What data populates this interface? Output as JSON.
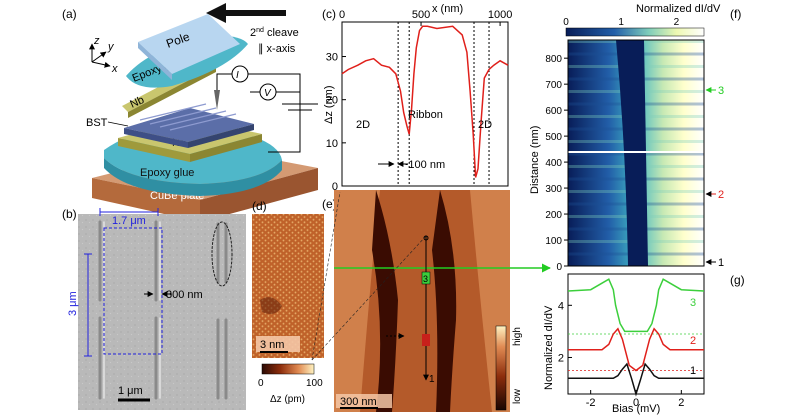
{
  "panel_a": {
    "label": "(a)",
    "axis_z": "z",
    "axis_y": "y",
    "axis_x": "x",
    "pole": "Pole",
    "epoxy_top": "Epoxy glue",
    "nb_top": "Nb",
    "cleave_pre": "2",
    "cleave_sup": "nd",
    "cleave_post": " cleave",
    "cleave_axis": "∥ x-axis",
    "bst": "BST",
    "nb_bottom": "Nb",
    "epoxy_bottom": "Epoxy glue",
    "plate": "CuBe plate",
    "current": "I",
    "voltage": "V"
  },
  "panel_b": {
    "label": "(b)",
    "width": "1.7 μm",
    "gap": "300 nm",
    "height": "3 μm",
    "scale": "1 μm"
  },
  "panel_c": {
    "label": "(c)",
    "x_title": "x (nm)",
    "y_title": "Δz (nm)",
    "left_region": "2D",
    "middle_region": "Ribbon",
    "right_region": "2D",
    "width_note": "~100 nm"
  },
  "panel_d": {
    "label": "(d)",
    "scale": "3 nm",
    "cbar_min": "0",
    "cbar_max": "100",
    "cbar_title": "Δz (pm)"
  },
  "panel_e": {
    "label": "(e)",
    "scale": "300 nm",
    "marker_1": "1",
    "marker_2": "2",
    "marker_3": "3",
    "cbar_high": "high",
    "cbar_low": "low"
  },
  "panel_f": {
    "label": "(f)",
    "cbar_title": "Normalized dI/dV",
    "cbar_ticks": [
      "0",
      "1",
      "2"
    ],
    "y_title": "Distance (nm)",
    "y_ticks": [
      "0",
      "100",
      "200",
      "300",
      "400",
      "500",
      "600",
      "700",
      "800"
    ],
    "marker_1": "1",
    "marker_2": "2",
    "marker_3": "3"
  },
  "panel_g": {
    "label": "(g)",
    "y_title": "Normalized dI/dV",
    "x_title": "Bias (mV)",
    "x_ticks": [
      "-2",
      "0",
      "2"
    ],
    "y_ticks": [
      "2",
      "4"
    ],
    "curve_1": "1",
    "curve_2": "2",
    "curve_3": "3"
  },
  "colors": {
    "profile": "#e0201b",
    "curve_1": "#111111",
    "curve_2": "#e0201b",
    "curve_3": "#3ccf3c",
    "arrow_green": "#22cc22",
    "scale_blue": "#2222dd"
  },
  "chart_data": [
    {
      "type": "line",
      "xlabel": "x (nm)",
      "ylabel": "Δz (nm)",
      "xlim": [
        0,
        1050
      ],
      "ylim": [
        0,
        38
      ],
      "x_ticks": [
        0,
        500,
        1000
      ],
      "y_ticks": [
        0,
        10,
        20,
        30
      ],
      "series": [
        {
          "x": [
            0,
            40,
            100,
            150,
            200,
            250,
            300,
            340,
            370,
            390,
            410,
            425,
            440,
            455,
            470,
            490,
            510,
            540,
            600,
            700,
            760,
            790,
            810,
            830,
            845,
            860,
            880,
            900,
            930,
            960,
            1000,
            1050
          ],
          "values": [
            26,
            27,
            28,
            29,
            29.5,
            28,
            27.5,
            26,
            22,
            17,
            14,
            12,
            18,
            26,
            32,
            36,
            37,
            37,
            36.5,
            37,
            35,
            31,
            22,
            12,
            2,
            4,
            15,
            25,
            27,
            28,
            29,
            28
          ]
        }
      ],
      "dashed_lines_x": [
        355,
        425,
        835,
        930
      ]
    },
    {
      "type": "heatmap",
      "xlabel": "Bias (mV)",
      "ylabel": "Distance (nm)",
      "xlim": [
        -3,
        3
      ],
      "ylim": [
        0,
        870
      ],
      "color_scale": [
        0,
        2.5
      ],
      "y_ticks": [
        0,
        100,
        200,
        300,
        400,
        500,
        600,
        700,
        800
      ]
    },
    {
      "type": "line",
      "xlabel": "Bias (mV)",
      "ylabel": "Normalized dI/dV",
      "xlim": [
        -3,
        3
      ],
      "ylim": [
        0.6,
        5.2
      ],
      "x_ticks": [
        -2,
        0,
        2
      ],
      "y_ticks": [
        2,
        4
      ],
      "series": [
        {
          "name": "1",
          "x": [
            -3,
            -2,
            -1,
            -0.8,
            -0.6,
            -0.4,
            -0.2,
            0,
            0.2,
            0.4,
            0.6,
            0.8,
            1,
            2,
            3
          ],
          "values": [
            1.2,
            1.2,
            1.2,
            1.3,
            1.55,
            1.75,
            1.2,
            0.6,
            1.15,
            1.75,
            1.55,
            1.3,
            1.2,
            1.2,
            1.2
          ]
        },
        {
          "name": "2",
          "x": [
            -3,
            -1.5,
            -1.2,
            -1,
            -0.8,
            -0.6,
            -0.3,
            0,
            0.3,
            0.6,
            0.8,
            1,
            1.2,
            1.5,
            3
          ],
          "values": [
            2.3,
            2.3,
            2.5,
            2.9,
            3.1,
            2.7,
            1.7,
            1.5,
            1.7,
            2.7,
            3.1,
            2.9,
            2.5,
            2.3,
            2.3
          ]
        },
        {
          "name": "3",
          "x": [
            -3,
            -2,
            -1.4,
            -1.2,
            -1,
            -0.9,
            -0.7,
            -0.5,
            0,
            0.5,
            0.7,
            0.9,
            1,
            1.2,
            1.4,
            2,
            3
          ],
          "values": [
            4.55,
            4.6,
            4.9,
            5.0,
            4.6,
            4.0,
            3.3,
            3.0,
            3.0,
            3.0,
            3.3,
            4.0,
            4.6,
            5.0,
            4.9,
            4.6,
            4.55
          ]
        }
      ],
      "reference_levels": [
        1.5,
        2.9
      ]
    }
  ]
}
